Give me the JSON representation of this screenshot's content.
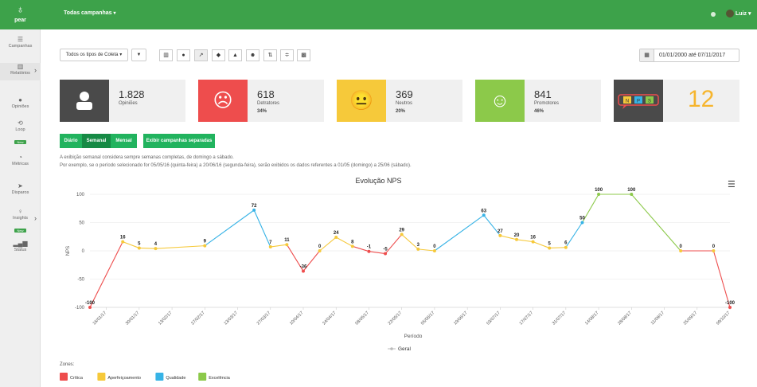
{
  "header": {
    "logo_text": "pear",
    "campaign_selector": "Todas campanhas",
    "user_name": "Luiz"
  },
  "sidebar": {
    "items": [
      {
        "label": "Campanhas",
        "icon": "list-icon"
      },
      {
        "label": "Relatórios",
        "icon": "bar-chart-icon"
      },
      {
        "label": "Opiniões",
        "icon": "comments-icon"
      },
      {
        "label": "Loop",
        "icon": "loop-icon",
        "badge": "New"
      },
      {
        "label": "Métricas",
        "icon": "dashboard-icon"
      },
      {
        "label": "Disparos",
        "icon": "send-icon"
      },
      {
        "label": "Insights",
        "icon": "lightbulb-icon",
        "badge": "New"
      },
      {
        "label": "Status",
        "icon": "status-icon"
      }
    ]
  },
  "toolbar": {
    "collection_filter": "Todos os tipos de Coleta",
    "date_range": "01/01/2000 até 07/11/2017"
  },
  "cards": {
    "opinions": {
      "value": "1.828",
      "label": "Opiniões"
    },
    "detractors": {
      "value": "618",
      "label": "Detratores",
      "pct": "34%"
    },
    "neutrals": {
      "value": "369",
      "label": "Neutros",
      "pct": "20%"
    },
    "promoters": {
      "value": "841",
      "label": "Promotores",
      "pct": "46%"
    },
    "nps": {
      "value": "12",
      "badge_letters": [
        "N",
        "P",
        "S"
      ]
    }
  },
  "period_toggle": {
    "options": [
      "Diário",
      "Semanal",
      "Mensal"
    ],
    "selected": "Semanal",
    "separate_button": "Exibir campanhas separadas"
  },
  "info_text": [
    "A exibição semanal considera sempre semanas completas, de domingo a sábado.",
    "Por exemplo, se o período selecionado for 05/05/16 (quinta-feira) a 20/06/16 (segunda-feira), serão exibidos os dados referentes a 01/05 (domingo) a 25/06 (sábado)."
  ],
  "colors": {
    "critica": "#ee4d4d",
    "aperfeicoamento": "#f6c93a",
    "qualidade": "#37b3e6",
    "excelencia": "#8cc94a",
    "brand": "#3da24a"
  },
  "chart_data": {
    "type": "line",
    "title": "Evolução NPS",
    "xlabel": "Período",
    "ylabel": "NPS",
    "ylim": [
      -100,
      100
    ],
    "yticks": [
      100,
      50,
      0,
      -50,
      -100
    ],
    "xtick_labels": [
      "16/01/17",
      "30/01/17",
      "13/02/17",
      "27/02/17",
      "13/03/17",
      "27/03/17",
      "10/04/17",
      "24/04/17",
      "08/05/17",
      "22/05/17",
      "05/06/17",
      "19/06/17",
      "03/07/17",
      "17/07/17",
      "31/07/17",
      "14/08/17",
      "28/08/17",
      "11/09/17",
      "25/09/17",
      "09/10/17"
    ],
    "series": [
      {
        "name": "Geral",
        "x": [
          "09/01/17",
          "23/01/17",
          "30/01/17",
          "06/02/17",
          "27/02/17",
          "20/03/17",
          "27/03/17",
          "03/04/17",
          "10/04/17",
          "17/04/17",
          "24/04/17",
          "01/05/17",
          "08/05/17",
          "15/05/17",
          "22/05/17",
          "29/05/17",
          "05/06/17",
          "26/06/17",
          "03/07/17",
          "10/07/17",
          "17/07/17",
          "24/07/17",
          "31/07/17",
          "07/08/17",
          "14/08/17",
          "28/08/17",
          "18/09/17",
          "02/10/17",
          "09/10/17"
        ],
        "values": [
          -100,
          16,
          5,
          4,
          9,
          72,
          7,
          11,
          -36,
          0,
          24,
          8,
          -1,
          -5,
          29,
          3,
          0,
          63,
          27,
          20,
          16,
          5,
          6,
          50,
          100,
          100,
          0,
          0,
          -100
        ]
      }
    ],
    "legend": "bottom-center",
    "zones_label": "Zones:",
    "zones": [
      {
        "name": "Crítica",
        "range": [
          -100,
          0
        ]
      },
      {
        "name": "Aperfeiçoamento",
        "range": [
          0,
          50
        ]
      },
      {
        "name": "Qualidade",
        "range": [
          50,
          75
        ]
      },
      {
        "name": "Excelência",
        "range": [
          75,
          100
        ]
      }
    ]
  }
}
